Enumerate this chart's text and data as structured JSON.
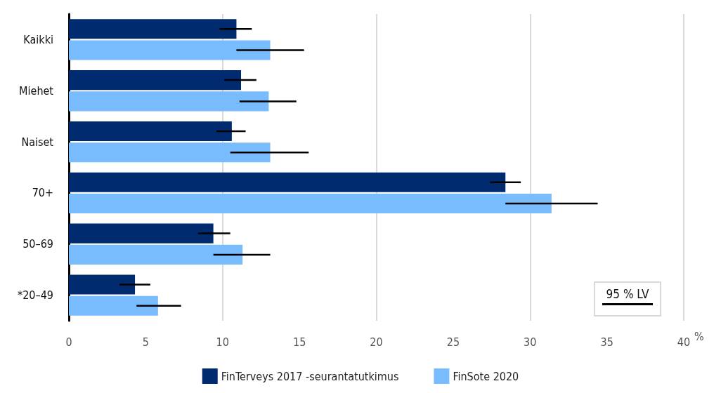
{
  "chart_data": {
    "type": "bar",
    "orientation": "horizontal",
    "categories": [
      "Kaikki",
      "Miehet",
      "Naiset",
      "70+",
      "50–69",
      "*20–49"
    ],
    "series": [
      {
        "name": "FinTerveys 2017 -seurantatutkimus",
        "color": "#002c6f",
        "values": [
          10.9,
          11.2,
          10.6,
          28.4,
          9.4,
          4.3
        ],
        "errors": [
          [
            9.8,
            11.9
          ],
          [
            10.1,
            12.2
          ],
          [
            9.6,
            11.5
          ],
          [
            27.4,
            29.4
          ],
          [
            8.4,
            10.5
          ],
          [
            3.3,
            5.3
          ]
        ]
      },
      {
        "name": "FinSote 2020",
        "color": "#78bcfd",
        "values": [
          13.1,
          13.0,
          13.1,
          31.4,
          11.3,
          5.8
        ],
        "errors": [
          [
            10.9,
            15.3
          ],
          [
            11.1,
            14.8
          ],
          [
            10.5,
            15.6
          ],
          [
            28.4,
            34.4
          ],
          [
            9.4,
            13.1
          ],
          [
            4.4,
            7.3
          ]
        ]
      }
    ],
    "xlim": [
      0,
      40
    ],
    "xticks": [
      0,
      5,
      10,
      15,
      20,
      25,
      30,
      35,
      40
    ],
    "xlabel": "%",
    "grid": "x",
    "legend": "bottom",
    "annotations": [
      "95 % LV"
    ]
  }
}
